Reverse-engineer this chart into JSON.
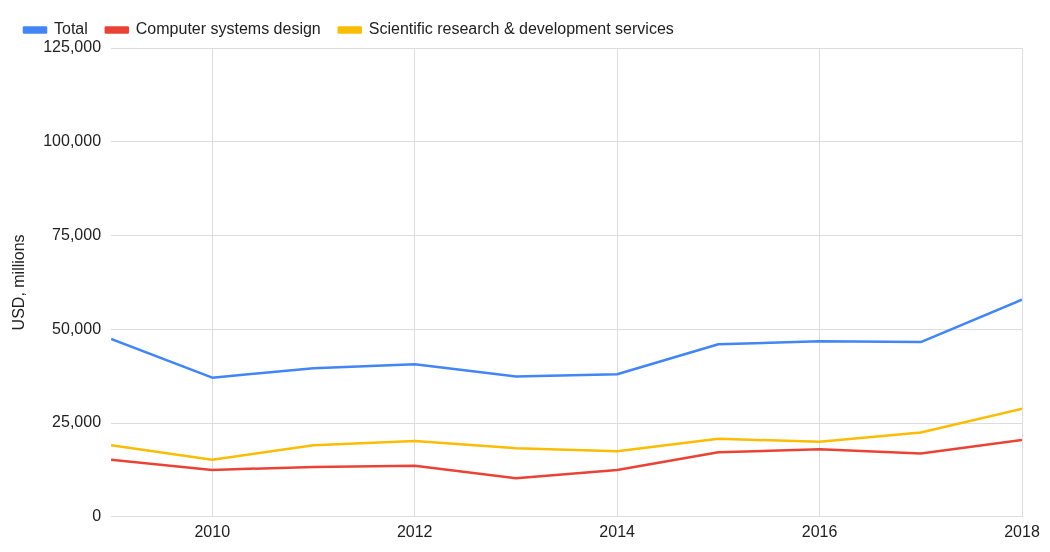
{
  "chart_data": {
    "type": "line",
    "ylabel": "USD, millions",
    "x": [
      2009,
      2010,
      2011,
      2012,
      2013,
      2014,
      2015,
      2016,
      2017,
      2018
    ],
    "series": [
      {
        "name": "Total",
        "color": "#4285f4",
        "values": [
          47400,
          37100,
          39600,
          40700,
          37400,
          38000,
          46000,
          46800,
          46600,
          57900
        ]
      },
      {
        "name": "Computer systems design",
        "color": "#ea4335",
        "values": [
          15200,
          12500,
          13300,
          13600,
          10300,
          12500,
          17200,
          18000,
          16900,
          20500
        ]
      },
      {
        "name": "Scientific research & development services",
        "color": "#fbbc04",
        "values": [
          19100,
          15200,
          19100,
          20200,
          18300,
          17500,
          20800,
          20000,
          22500,
          28800
        ]
      }
    ],
    "xlim": [
      2009,
      2018
    ],
    "xticks": [
      2010,
      2012,
      2014,
      2016,
      2018
    ],
    "ylim": [
      0,
      125000
    ],
    "yticks": [
      0,
      {
        "value": 25000,
        "label": "25,000"
      },
      {
        "value": 50000,
        "label": "50,000"
      },
      {
        "value": 75000,
        "label": "75,000"
      },
      {
        "value": 100000,
        "label": "100,000"
      },
      {
        "value": 125000,
        "label": "125,000"
      }
    ],
    "grid": true,
    "legend": "top left",
    "marker": "none",
    "line_style": "solid"
  }
}
